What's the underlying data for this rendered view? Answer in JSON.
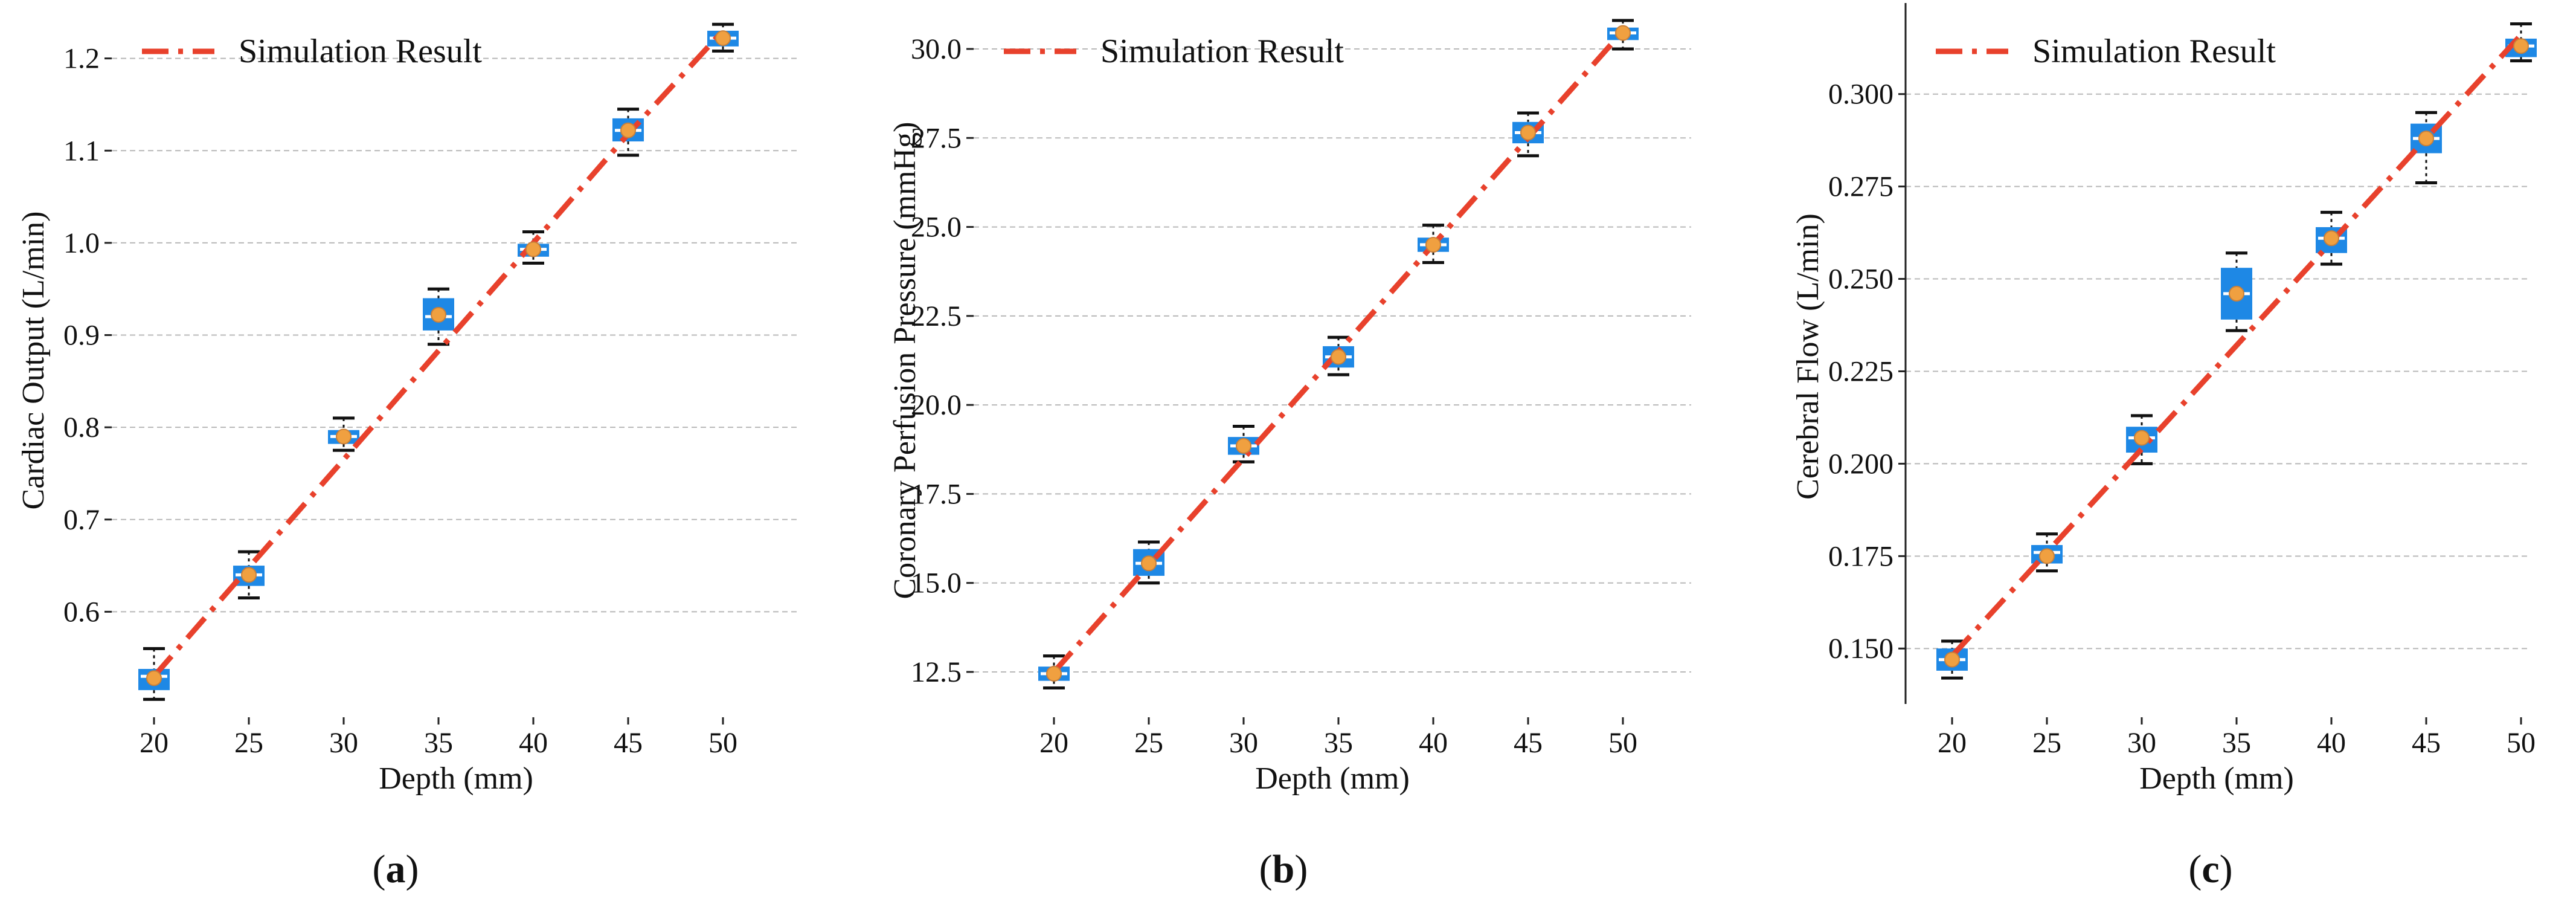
{
  "colors": {
    "simulation": "#e8412c",
    "box": "#1e88e5",
    "median": "#ffffff",
    "mean": "#f0a040",
    "grid": "#b8b8b8"
  },
  "chart_data": [
    {
      "type": "box",
      "panel": "(a)",
      "title": "",
      "xlabel": "Depth  (mm)",
      "ylabel": "Cardiac Output  (L/min)",
      "ylim": [
        0.5,
        1.245
      ],
      "yticks": [
        0.6,
        0.7,
        0.8,
        0.9,
        1.0,
        1.1,
        1.2
      ],
      "ytick_labels": [
        "0.6",
        "0.7",
        "0.8",
        "0.9",
        "1.0",
        "1.1",
        "1.2"
      ],
      "categories": [
        20,
        25,
        30,
        35,
        40,
        45,
        50
      ],
      "category_labels": [
        "20",
        "25",
        "30",
        "35",
        "40",
        "45",
        "50"
      ],
      "legend": {
        "position": "top-left",
        "label": "Simulation Result"
      },
      "simulation": [
        0.53,
        0.648,
        0.765,
        0.883,
        1.0,
        1.118,
        1.23
      ],
      "boxes": [
        {
          "x": 20,
          "whislo": 0.505,
          "q1": 0.515,
          "med": 0.53,
          "q3": 0.538,
          "whishi": 0.56,
          "mean": 0.528
        },
        {
          "x": 25,
          "whislo": 0.615,
          "q1": 0.628,
          "med": 0.64,
          "q3": 0.65,
          "whishi": 0.665,
          "mean": 0.64
        },
        {
          "x": 30,
          "whislo": 0.775,
          "q1": 0.782,
          "med": 0.79,
          "q3": 0.797,
          "whishi": 0.81,
          "mean": 0.79
        },
        {
          "x": 35,
          "whislo": 0.89,
          "q1": 0.905,
          "med": 0.92,
          "q3": 0.94,
          "whishi": 0.95,
          "mean": 0.922
        },
        {
          "x": 40,
          "whislo": 0.978,
          "q1": 0.985,
          "med": 0.993,
          "q3": 0.999,
          "whishi": 1.012,
          "mean": 0.993
        },
        {
          "x": 45,
          "whislo": 1.095,
          "q1": 1.11,
          "med": 1.122,
          "q3": 1.135,
          "whishi": 1.145,
          "mean": 1.122
        },
        {
          "x": 50,
          "whislo": 1.208,
          "q1": 1.213,
          "med": 1.222,
          "q3": 1.23,
          "whishi": 1.237,
          "mean": 1.222
        }
      ]
    },
    {
      "type": "box",
      "panel": "(b)",
      "title": "",
      "xlabel": "Depth  (mm)",
      "ylabel": "Coronary Perfusion Pressure  (mmHg)",
      "ylim": [
        11.6,
        30.9
      ],
      "yticks": [
        12.5,
        15.0,
        17.5,
        20.0,
        22.5,
        25.0,
        27.5,
        30.0
      ],
      "ytick_labels": [
        "12.5",
        "15.0",
        "17.5",
        "20.0",
        "22.5",
        "25.0",
        "27.5",
        "30.0"
      ],
      "categories": [
        20,
        25,
        30,
        35,
        40,
        45,
        50
      ],
      "category_labels": [
        "20",
        "25",
        "30",
        "35",
        "40",
        "45",
        "50"
      ],
      "legend": {
        "position": "top-left",
        "label": "Simulation Result"
      },
      "simulation": [
        12.5,
        15.5,
        18.5,
        21.5,
        24.5,
        27.5,
        30.5
      ],
      "boxes": [
        {
          "x": 20,
          "whislo": 12.05,
          "q1": 12.25,
          "med": 12.45,
          "q3": 12.65,
          "whishi": 12.95,
          "mean": 12.45
        },
        {
          "x": 25,
          "whislo": 15.0,
          "q1": 15.2,
          "med": 15.55,
          "q3": 15.95,
          "whishi": 16.15,
          "mean": 15.55
        },
        {
          "x": 30,
          "whislo": 18.4,
          "q1": 18.6,
          "med": 18.85,
          "q3": 19.1,
          "whishi": 19.4,
          "mean": 18.85
        },
        {
          "x": 35,
          "whislo": 20.85,
          "q1": 21.05,
          "med": 21.35,
          "q3": 21.65,
          "whishi": 21.9,
          "mean": 21.35
        },
        {
          "x": 40,
          "whislo": 24.0,
          "q1": 24.3,
          "med": 24.5,
          "q3": 24.7,
          "whishi": 25.05,
          "mean": 24.5
        },
        {
          "x": 45,
          "whislo": 27.0,
          "q1": 27.35,
          "med": 27.65,
          "q3": 27.95,
          "whishi": 28.2,
          "mean": 27.65
        },
        {
          "x": 50,
          "whislo": 30.0,
          "q1": 30.25,
          "med": 30.45,
          "q3": 30.6,
          "whishi": 30.8,
          "mean": 30.45
        }
      ]
    },
    {
      "type": "box",
      "panel": "(c)",
      "title": "",
      "xlabel": "Depth  (mm)",
      "ylabel": "Cerebral Flow  (L/min)",
      "ylim": [
        0.135,
        0.323
      ],
      "yticks": [
        0.15,
        0.175,
        0.2,
        0.225,
        0.25,
        0.275,
        0.3
      ],
      "ytick_labels": [
        "0.150",
        "0.175",
        "0.200",
        "0.225",
        "0.250",
        "0.275",
        "0.300"
      ],
      "categories": [
        20,
        25,
        30,
        35,
        40,
        45,
        50
      ],
      "category_labels": [
        "20",
        "25",
        "30",
        "35",
        "40",
        "45",
        "50"
      ],
      "legend": {
        "position": "top-left",
        "label": "Simulation Result"
      },
      "simulation": [
        0.148,
        0.176,
        0.204,
        0.232,
        0.26,
        0.288,
        0.316
      ],
      "boxes": [
        {
          "x": 20,
          "whislo": 0.142,
          "q1": 0.144,
          "med": 0.147,
          "q3": 0.15,
          "whishi": 0.152,
          "mean": 0.147
        },
        {
          "x": 25,
          "whislo": 0.171,
          "q1": 0.173,
          "med": 0.176,
          "q3": 0.178,
          "whishi": 0.181,
          "mean": 0.175
        },
        {
          "x": 30,
          "whislo": 0.2,
          "q1": 0.203,
          "med": 0.207,
          "q3": 0.21,
          "whishi": 0.213,
          "mean": 0.207
        },
        {
          "x": 35,
          "whislo": 0.236,
          "q1": 0.239,
          "med": 0.246,
          "q3": 0.253,
          "whishi": 0.257,
          "mean": 0.246
        },
        {
          "x": 40,
          "whislo": 0.254,
          "q1": 0.257,
          "med": 0.261,
          "q3": 0.264,
          "whishi": 0.268,
          "mean": 0.261
        },
        {
          "x": 45,
          "whislo": 0.276,
          "q1": 0.284,
          "med": 0.288,
          "q3": 0.292,
          "whishi": 0.295,
          "mean": 0.288
        },
        {
          "x": 50,
          "whislo": 0.309,
          "q1": 0.31,
          "med": 0.313,
          "q3": 0.315,
          "whishi": 0.319,
          "mean": 0.313
        }
      ]
    }
  ]
}
